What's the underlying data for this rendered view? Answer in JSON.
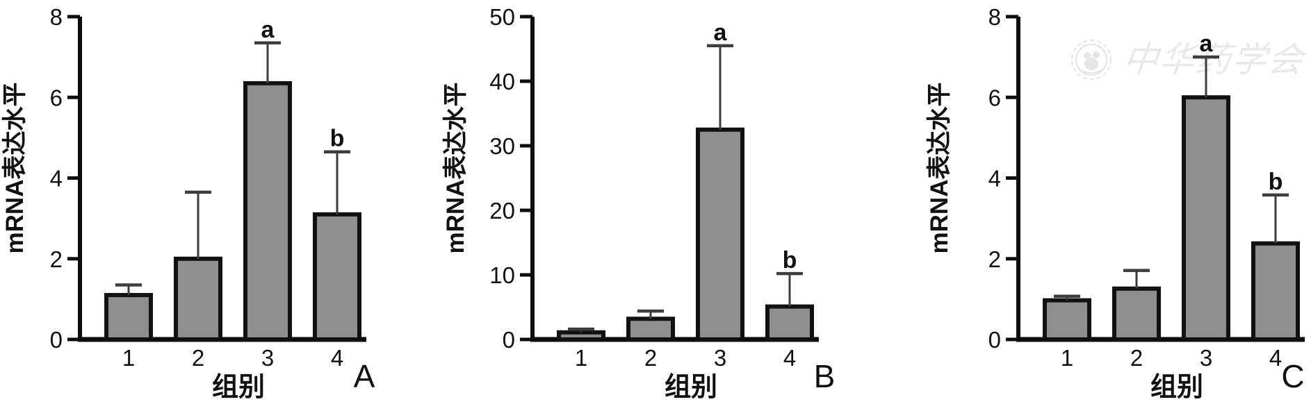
{
  "figure": {
    "watermark": {
      "icon": "seal-logo",
      "text": "中华药学会"
    }
  },
  "chart_data": [
    {
      "type": "bar",
      "panel_label": "A",
      "title": "",
      "xlabel": "组别",
      "ylabel": "mRNA表达水平",
      "categories": [
        "1",
        "2",
        "3",
        "4"
      ],
      "values": [
        1.1,
        2.0,
        6.35,
        3.1
      ],
      "errors": [
        0.25,
        1.65,
        1.0,
        1.55
      ],
      "annotations": [
        "",
        "",
        "a",
        "b"
      ],
      "ylim": [
        0,
        8
      ],
      "yticks": [
        0,
        2,
        4,
        6,
        8
      ],
      "grid": false,
      "legend": null,
      "bar_color": "#8e8e8e",
      "bar_border_color": "#111111",
      "error_color": "#3d3d3d"
    },
    {
      "type": "bar",
      "panel_label": "B",
      "title": "",
      "xlabel": "组别",
      "ylabel": "mRNA表达水平",
      "categories": [
        "1",
        "2",
        "3",
        "4"
      ],
      "values": [
        1.1,
        3.2,
        32.5,
        5.1
      ],
      "errors": [
        0.5,
        1.2,
        13.0,
        5.1
      ],
      "annotations": [
        "",
        "",
        "a",
        "b"
      ],
      "ylim": [
        0,
        50
      ],
      "yticks": [
        0,
        10,
        20,
        30,
        40,
        50
      ],
      "grid": false,
      "legend": null,
      "bar_color": "#8e8e8e",
      "bar_border_color": "#111111",
      "error_color": "#3d3d3d"
    },
    {
      "type": "bar",
      "panel_label": "C",
      "title": "",
      "xlabel": "组别",
      "ylabel": "mRNA表达水平",
      "categories": [
        "1",
        "2",
        "3",
        "4"
      ],
      "values": [
        0.97,
        1.26,
        6.0,
        2.38
      ],
      "errors": [
        0.1,
        0.45,
        1.0,
        1.2
      ],
      "annotations": [
        "",
        "",
        "a",
        "b"
      ],
      "ylim": [
        0,
        8
      ],
      "yticks": [
        0,
        2,
        4,
        6,
        8
      ],
      "grid": false,
      "legend": null,
      "bar_color": "#8e8e8e",
      "bar_border_color": "#111111",
      "error_color": "#3d3d3d"
    }
  ]
}
